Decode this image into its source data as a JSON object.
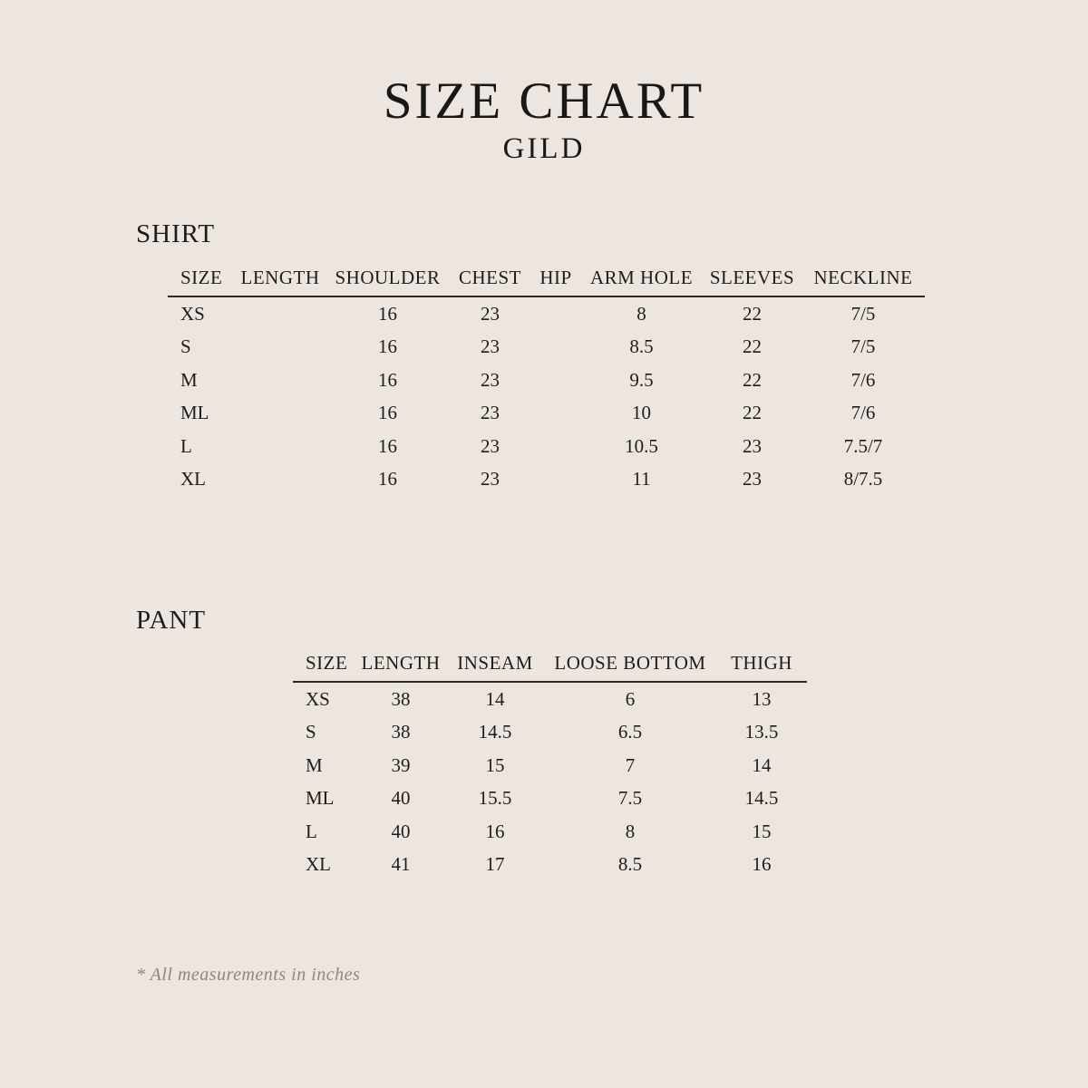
{
  "title": "SIZE CHART",
  "subtitle": "GILD",
  "shirt": {
    "label": "SHIRT",
    "columns": [
      "SIZE",
      "LENGTH",
      "SHOULDER",
      "CHEST",
      "HIP",
      "ARM HOLE",
      "SLEEVES",
      "NECKLINE"
    ],
    "rows": [
      [
        "XS",
        "",
        "16",
        "23",
        "",
        "8",
        "22",
        "7/5"
      ],
      [
        "S",
        "",
        "16",
        "23",
        "",
        "8.5",
        "22",
        "7/5"
      ],
      [
        "M",
        "",
        "16",
        "23",
        "",
        "9.5",
        "22",
        "7/6"
      ],
      [
        "ML",
        "",
        "16",
        "23",
        "",
        "10",
        "22",
        "7/6"
      ],
      [
        "L",
        "",
        "16",
        "23",
        "",
        "10.5",
        "23",
        "7.5/7"
      ],
      [
        "XL",
        "",
        "16",
        "23",
        "",
        "11",
        "23",
        "8/7.5"
      ]
    ]
  },
  "pant": {
    "label": "PANT",
    "columns": [
      "SIZE",
      "LENGTH",
      "INSEAM",
      "LOOSE BOTTOM",
      "THIGH"
    ],
    "rows": [
      [
        "XS",
        "38",
        "14",
        "6",
        "13"
      ],
      [
        "S",
        "38",
        "14.5",
        "6.5",
        "13.5"
      ],
      [
        "M",
        "39",
        "15",
        "7",
        "14"
      ],
      [
        "ML",
        "40",
        "15.5",
        "7.5",
        "14.5"
      ],
      [
        "L",
        "40",
        "16",
        "8",
        "15"
      ],
      [
        "XL",
        "41",
        "17",
        "8.5",
        "16"
      ]
    ]
  },
  "footnote": "* All measurements in inches",
  "colors": {
    "background": "#EDE6E0",
    "text": "#1F1D1B",
    "rule": "#2B2A28",
    "footnote": "#8E877D"
  }
}
